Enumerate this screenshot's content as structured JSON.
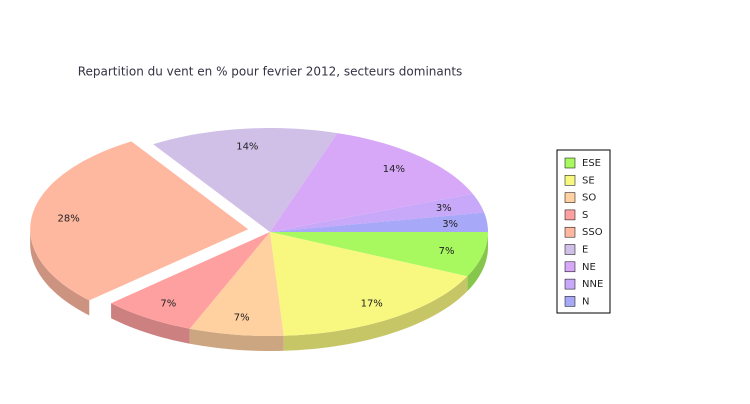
{
  "chart_data": {
    "type": "pie3d",
    "title": "Repartition du vent en % pour fevrier 2012, secteurs dominants",
    "categories": [
      "ESE",
      "SE",
      "SO",
      "S",
      "SSO",
      "E",
      "NE",
      "NNE",
      "N"
    ],
    "values": [
      7,
      17,
      7,
      7,
      28,
      14,
      14,
      3,
      3
    ],
    "value_labels": [
      "7%",
      "17%",
      "7%",
      "7%",
      "28%",
      "14%",
      "14%",
      "3%",
      "3%"
    ],
    "colors": [
      "#a8f860",
      "#f8f880",
      "#ffd0a0",
      "#ffa0a0",
      "#ffb8a0",
      "#d0c0e8",
      "#d8a8f8",
      "#c8a8f8",
      "#a8a8f8"
    ],
    "exploded": "SSO",
    "legend": "right"
  }
}
